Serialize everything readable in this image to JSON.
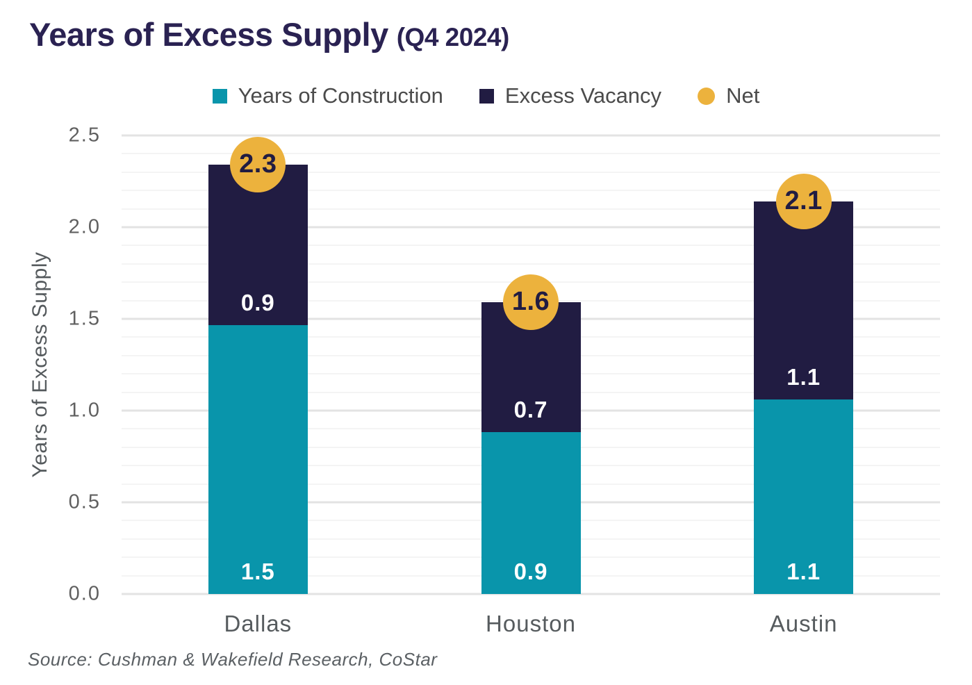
{
  "title": {
    "main": "Years of Excess Supply",
    "suffix": "(Q4 2024)"
  },
  "source": "Source: Cushman & Wakefield Research, CoStar",
  "colors": {
    "construction_teal": "#0995AB",
    "vacancy_navy": "#211C42",
    "net_gold": "#ECB23D",
    "title_navy": "#2A2252",
    "grid_minor": "#F4F4F4",
    "grid_major": "#E3E3E3"
  },
  "chart_data": {
    "type": "bar",
    "stacked": true,
    "title": "Years of Excess Supply (Q4 2024)",
    "ylabel": "Years of Excess Supply",
    "xlabel": "",
    "ylim": [
      0,
      2.5
    ],
    "ytick_step_minor": 0.1,
    "ytick_step_major": 0.5,
    "yticks": [
      "0.0",
      "0.5",
      "1.0",
      "1.5",
      "2.0",
      "2.5"
    ],
    "grid": true,
    "legend_position": "top",
    "legend": [
      "Years of Construction",
      "Excess Vacancy",
      "Net"
    ],
    "categories": [
      "Dallas",
      "Houston",
      "Austin"
    ],
    "series": [
      {
        "name": "Years of Construction",
        "color": "#0995AB",
        "values": [
          1.5,
          0.9,
          1.1
        ]
      },
      {
        "name": "Excess Vacancy",
        "color": "#211C42",
        "values": [
          0.9,
          0.7,
          1.1
        ]
      }
    ],
    "net": {
      "name": "Net",
      "color": "#ECB23D",
      "values": [
        2.3,
        1.6,
        2.1
      ]
    },
    "drawn_heights": {
      "construction": [
        1.466,
        0.883,
        1.061
      ],
      "vacancy": [
        0.875,
        0.708,
        1.08
      ]
    }
  }
}
